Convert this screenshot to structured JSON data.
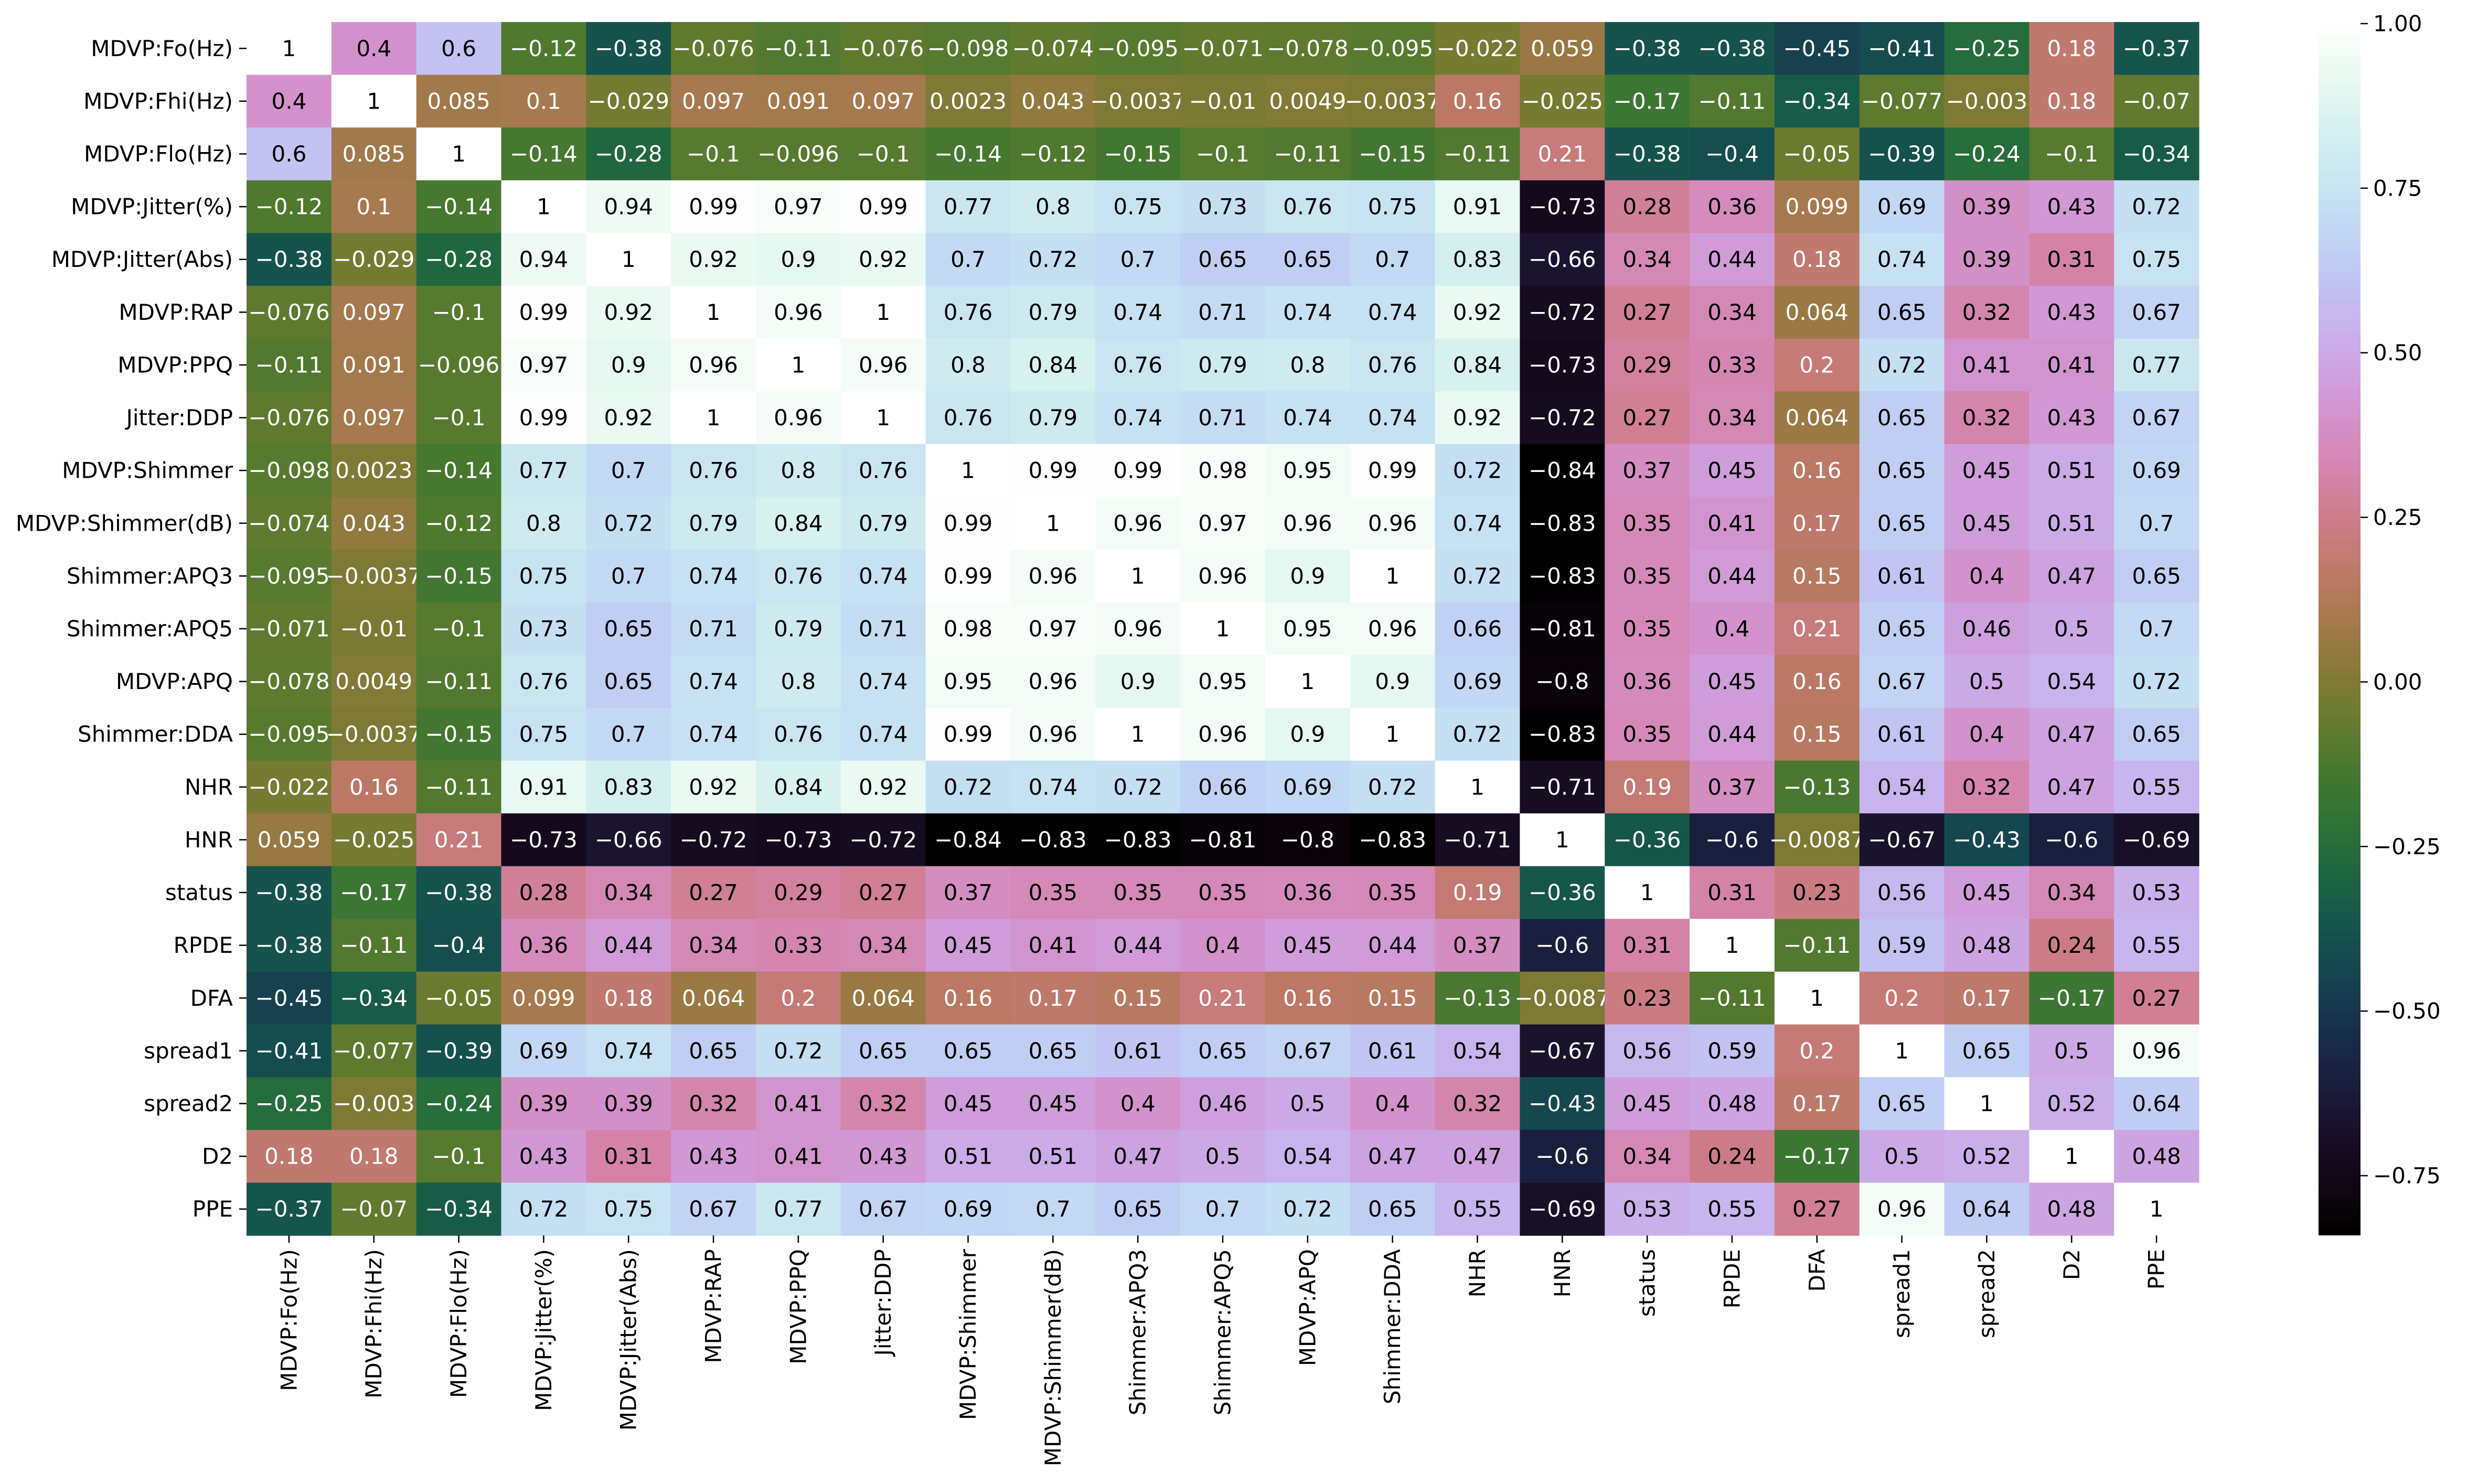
{
  "chart_data": {
    "type": "heatmap",
    "title": "",
    "xlabel": "",
    "ylabel": "",
    "variables": [
      "MDVP:Fo(Hz)",
      "MDVP:Fhi(Hz)",
      "MDVP:Flo(Hz)",
      "MDVP:Jitter(%)",
      "MDVP:Jitter(Abs)",
      "MDVP:RAP",
      "MDVP:PPQ",
      "Jitter:DDP",
      "MDVP:Shimmer",
      "MDVP:Shimmer(dB)",
      "Shimmer:APQ3",
      "Shimmer:APQ5",
      "MDVP:APQ",
      "Shimmer:DDA",
      "NHR",
      "HNR",
      "status",
      "RPDE",
      "DFA",
      "spread1",
      "spread2",
      "D2",
      "PPE"
    ],
    "values": [
      [
        "1",
        "0.4",
        "0.6",
        "-0.12",
        "-0.38",
        "-0.076",
        "-0.11",
        "-0.076",
        "-0.098",
        "-0.074",
        "-0.095",
        "-0.071",
        "-0.078",
        "-0.095",
        "-0.022",
        "0.059",
        "-0.38",
        "-0.38",
        "-0.45",
        "-0.41",
        "-0.25",
        "0.18",
        "-0.37"
      ],
      [
        "0.4",
        "1",
        "0.085",
        "0.1",
        "-0.029",
        "0.097",
        "0.091",
        "0.097",
        "0.0023",
        "0.043",
        "-0.0037",
        "-0.01",
        "0.0049",
        "-0.0037",
        "0.16",
        "-0.025",
        "-0.17",
        "-0.11",
        "-0.34",
        "-0.077",
        "-0.003",
        "0.18",
        "-0.07"
      ],
      [
        "0.6",
        "0.085",
        "1",
        "-0.14",
        "-0.28",
        "-0.1",
        "-0.096",
        "-0.1",
        "-0.14",
        "-0.12",
        "-0.15",
        "-0.1",
        "-0.11",
        "-0.15",
        "-0.11",
        "0.21",
        "-0.38",
        "-0.4",
        "-0.05",
        "-0.39",
        "-0.24",
        "-0.1",
        "-0.34"
      ],
      [
        "-0.12",
        "0.1",
        "-0.14",
        "1",
        "0.94",
        "0.99",
        "0.97",
        "0.99",
        "0.77",
        "0.8",
        "0.75",
        "0.73",
        "0.76",
        "0.75",
        "0.91",
        "-0.73",
        "0.28",
        "0.36",
        "0.099",
        "0.69",
        "0.39",
        "0.43",
        "0.72"
      ],
      [
        "-0.38",
        "-0.029",
        "-0.28",
        "0.94",
        "1",
        "0.92",
        "0.9",
        "0.92",
        "0.7",
        "0.72",
        "0.7",
        "0.65",
        "0.65",
        "0.7",
        "0.83",
        "-0.66",
        "0.34",
        "0.44",
        "0.18",
        "0.74",
        "0.39",
        "0.31",
        "0.75"
      ],
      [
        "-0.076",
        "0.097",
        "-0.1",
        "0.99",
        "0.92",
        "1",
        "0.96",
        "1",
        "0.76",
        "0.79",
        "0.74",
        "0.71",
        "0.74",
        "0.74",
        "0.92",
        "-0.72",
        "0.27",
        "0.34",
        "0.064",
        "0.65",
        "0.32",
        "0.43",
        "0.67"
      ],
      [
        "-0.11",
        "0.091",
        "-0.096",
        "0.97",
        "0.9",
        "0.96",
        "1",
        "0.96",
        "0.8",
        "0.84",
        "0.76",
        "0.79",
        "0.8",
        "0.76",
        "0.84",
        "-0.73",
        "0.29",
        "0.33",
        "0.2",
        "0.72",
        "0.41",
        "0.41",
        "0.77"
      ],
      [
        "-0.076",
        "0.097",
        "-0.1",
        "0.99",
        "0.92",
        "1",
        "0.96",
        "1",
        "0.76",
        "0.79",
        "0.74",
        "0.71",
        "0.74",
        "0.74",
        "0.92",
        "-0.72",
        "0.27",
        "0.34",
        "0.064",
        "0.65",
        "0.32",
        "0.43",
        "0.67"
      ],
      [
        "-0.098",
        "0.0023",
        "-0.14",
        "0.77",
        "0.7",
        "0.76",
        "0.8",
        "0.76",
        "1",
        "0.99",
        "0.99",
        "0.98",
        "0.95",
        "0.99",
        "0.72",
        "-0.84",
        "0.37",
        "0.45",
        "0.16",
        "0.65",
        "0.45",
        "0.51",
        "0.69"
      ],
      [
        "-0.074",
        "0.043",
        "-0.12",
        "0.8",
        "0.72",
        "0.79",
        "0.84",
        "0.79",
        "0.99",
        "1",
        "0.96",
        "0.97",
        "0.96",
        "0.96",
        "0.74",
        "-0.83",
        "0.35",
        "0.41",
        "0.17",
        "0.65",
        "0.45",
        "0.51",
        "0.7"
      ],
      [
        "-0.095",
        "-0.0037",
        "-0.15",
        "0.75",
        "0.7",
        "0.74",
        "0.76",
        "0.74",
        "0.99",
        "0.96",
        "1",
        "0.96",
        "0.9",
        "1",
        "0.72",
        "-0.83",
        "0.35",
        "0.44",
        "0.15",
        "0.61",
        "0.4",
        "0.47",
        "0.65"
      ],
      [
        "-0.071",
        "-0.01",
        "-0.1",
        "0.73",
        "0.65",
        "0.71",
        "0.79",
        "0.71",
        "0.98",
        "0.97",
        "0.96",
        "1",
        "0.95",
        "0.96",
        "0.66",
        "-0.81",
        "0.35",
        "0.4",
        "0.21",
        "0.65",
        "0.46",
        "0.5",
        "0.7"
      ],
      [
        "-0.078",
        "0.0049",
        "-0.11",
        "0.76",
        "0.65",
        "0.74",
        "0.8",
        "0.74",
        "0.95",
        "0.96",
        "0.9",
        "0.95",
        "1",
        "0.9",
        "0.69",
        "-0.8",
        "0.36",
        "0.45",
        "0.16",
        "0.67",
        "0.5",
        "0.54",
        "0.72"
      ],
      [
        "-0.095",
        "-0.0037",
        "-0.15",
        "0.75",
        "0.7",
        "0.74",
        "0.76",
        "0.74",
        "0.99",
        "0.96",
        "1",
        "0.96",
        "0.9",
        "1",
        "0.72",
        "-0.83",
        "0.35",
        "0.44",
        "0.15",
        "0.61",
        "0.4",
        "0.47",
        "0.65"
      ],
      [
        "-0.022",
        "0.16",
        "-0.11",
        "0.91",
        "0.83",
        "0.92",
        "0.84",
        "0.92",
        "0.72",
        "0.74",
        "0.72",
        "0.66",
        "0.69",
        "0.72",
        "1",
        "-0.71",
        "0.19",
        "0.37",
        "-0.13",
        "0.54",
        "0.32",
        "0.47",
        "0.55"
      ],
      [
        "0.059",
        "-0.025",
        "0.21",
        "-0.73",
        "-0.66",
        "-0.72",
        "-0.73",
        "-0.72",
        "-0.84",
        "-0.83",
        "-0.83",
        "-0.81",
        "-0.8",
        "-0.83",
        "-0.71",
        "1",
        "-0.36",
        "-0.6",
        "-0.0087",
        "-0.67",
        "-0.43",
        "-0.6",
        "-0.69"
      ],
      [
        "-0.38",
        "-0.17",
        "-0.38",
        "0.28",
        "0.34",
        "0.27",
        "0.29",
        "0.27",
        "0.37",
        "0.35",
        "0.35",
        "0.35",
        "0.36",
        "0.35",
        "0.19",
        "-0.36",
        "1",
        "0.31",
        "0.23",
        "0.56",
        "0.45",
        "0.34",
        "0.53"
      ],
      [
        "-0.38",
        "-0.11",
        "-0.4",
        "0.36",
        "0.44",
        "0.34",
        "0.33",
        "0.34",
        "0.45",
        "0.41",
        "0.44",
        "0.4",
        "0.45",
        "0.44",
        "0.37",
        "-0.6",
        "0.31",
        "1",
        "-0.11",
        "0.59",
        "0.48",
        "0.24",
        "0.55"
      ],
      [
        "-0.45",
        "-0.34",
        "-0.05",
        "0.099",
        "0.18",
        "0.064",
        "0.2",
        "0.064",
        "0.16",
        "0.17",
        "0.15",
        "0.21",
        "0.16",
        "0.15",
        "-0.13",
        "-0.0087",
        "0.23",
        "-0.11",
        "1",
        "0.2",
        "0.17",
        "-0.17",
        "0.27"
      ],
      [
        "-0.41",
        "-0.077",
        "-0.39",
        "0.69",
        "0.74",
        "0.65",
        "0.72",
        "0.65",
        "0.65",
        "0.65",
        "0.61",
        "0.65",
        "0.67",
        "0.61",
        "0.54",
        "-0.67",
        "0.56",
        "0.59",
        "0.2",
        "1",
        "0.65",
        "0.5",
        "0.96"
      ],
      [
        "-0.25",
        "-0.003",
        "-0.24",
        "0.39",
        "0.39",
        "0.32",
        "0.41",
        "0.32",
        "0.45",
        "0.45",
        "0.4",
        "0.46",
        "0.5",
        "0.4",
        "0.32",
        "-0.43",
        "0.45",
        "0.48",
        "0.17",
        "0.65",
        "1",
        "0.52",
        "0.64"
      ],
      [
        "0.18",
        "0.18",
        "-0.1",
        "0.43",
        "0.31",
        "0.43",
        "0.41",
        "0.43",
        "0.51",
        "0.51",
        "0.47",
        "0.5",
        "0.54",
        "0.47",
        "0.47",
        "-0.6",
        "0.34",
        "0.24",
        "-0.17",
        "0.5",
        "0.52",
        "1",
        "0.48"
      ],
      [
        "-0.37",
        "-0.07",
        "-0.34",
        "0.72",
        "0.75",
        "0.67",
        "0.77",
        "0.67",
        "0.69",
        "0.7",
        "0.65",
        "0.7",
        "0.72",
        "0.65",
        "0.55",
        "-0.69",
        "0.53",
        "0.55",
        "0.27",
        "0.96",
        "0.64",
        "0.48",
        "1"
      ]
    ],
    "colorbar": {
      "vmin": -0.84,
      "vmax": 1.0,
      "ticks": [
        1.0,
        0.75,
        0.5,
        0.25,
        0.0,
        -0.25,
        -0.5,
        -0.75
      ],
      "tick_labels": [
        "1.00",
        "0.75",
        "0.50",
        "0.25",
        "0.00",
        "−0.25",
        "−0.50",
        "−0.75"
      ]
    },
    "colormap": "cubehelix",
    "annotated": true,
    "grid": false,
    "legend": "right"
  }
}
